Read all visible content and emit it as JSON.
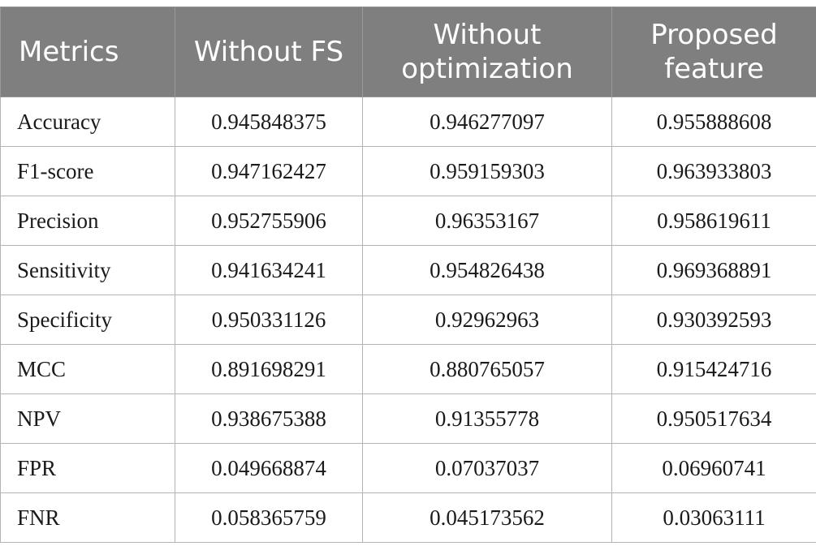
{
  "table": {
    "headers": [
      "Metrics",
      "Without FS",
      "Without optimization",
      "Proposed feature"
    ],
    "rows": [
      [
        "Accuracy",
        "0.945848375",
        "0.946277097",
        "0.955888608"
      ],
      [
        "F1-score",
        "0.947162427",
        "0.959159303",
        "0.963933803"
      ],
      [
        "Precision",
        "0.952755906",
        "0.96353167",
        "0.958619611"
      ],
      [
        "Sensitivity",
        "0.941634241",
        "0.954826438",
        "0.969368891"
      ],
      [
        "Specificity",
        "0.950331126",
        "0.92962963",
        "0.930392593"
      ],
      [
        "MCC",
        "0.891698291",
        "0.880765057",
        "0.915424716"
      ],
      [
        "NPV",
        "0.938675388",
        "0.91355778",
        "0.950517634"
      ],
      [
        "FPR",
        "0.049668874",
        "0.07037037",
        "0.06960741"
      ],
      [
        "FNR",
        "0.058365759",
        "0.045173562",
        "0.03063111"
      ]
    ]
  }
}
